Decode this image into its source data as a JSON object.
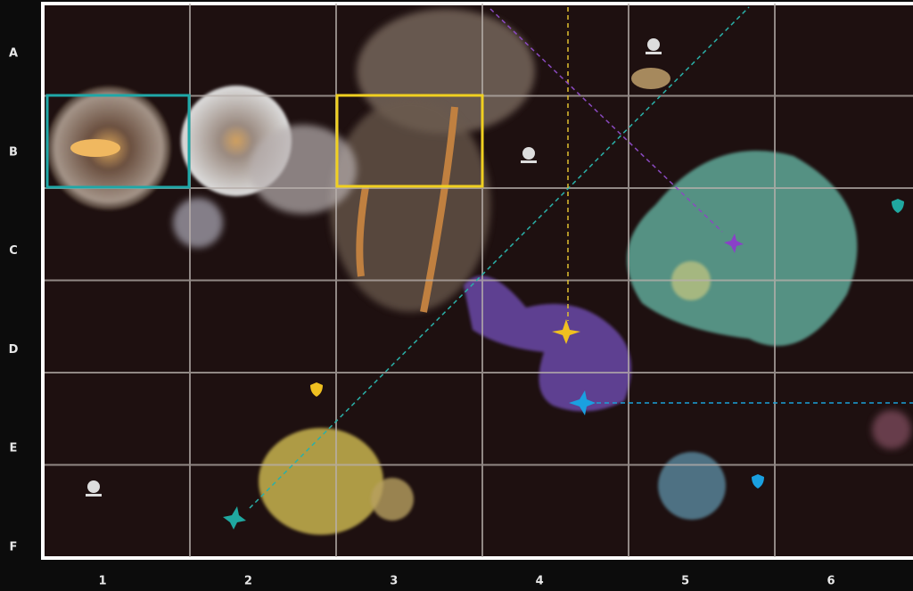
{
  "grid": {
    "rows": [
      "A",
      "B",
      "C",
      "D",
      "E",
      "F"
    ],
    "columns": [
      "1",
      "2",
      "3",
      "4",
      "5",
      "6"
    ]
  }
}
